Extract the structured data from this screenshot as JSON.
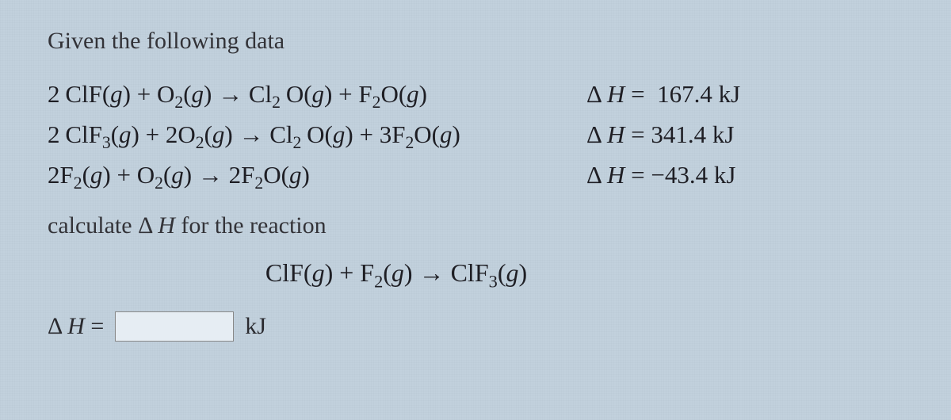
{
  "colors": {
    "background": "#c2d1dd",
    "text_primary": "#2a2a2f",
    "text_equation": "#1e1e24",
    "input_border": "#888888",
    "input_background": "#e6edf3"
  },
  "fonts": {
    "body_size_pt": 22,
    "equation_size_pt": 23,
    "family": "Georgia, Times New Roman, serif"
  },
  "intro_text": "Given the following data",
  "equations": [
    {
      "lhs_html": "2<span class='sp'></span>ClF(<span class='italic'>g</span>) + O<sub>2</sub>(<span class='italic'>g</span>) → Cl<sub>2</sub><span class='sp'></span>O(<span class='italic'>g</span>) + F<sub>2</sub>O(<span class='italic'>g</span>)",
      "dh_label": "Δ <span class='italic'>H</span> =",
      "dh_value": "167.4",
      "dh_unit": "kJ"
    },
    {
      "lhs_html": "2<span class='sp'></span>ClF<sub>3</sub>(<span class='italic'>g</span>) + 2O<sub>2</sub>(<span class='italic'>g</span>) → Cl<sub>2</sub><span class='sp'></span>O(<span class='italic'>g</span>) + 3F<sub>2</sub>O(<span class='italic'>g</span>)",
      "dh_label": "Δ <span class='italic'>H</span> =",
      "dh_value": "341.4",
      "dh_unit": "kJ"
    },
    {
      "lhs_html": "2F<sub>2</sub>(<span class='italic'>g</span>) + O<sub>2</sub>(<span class='italic'>g</span>) → 2F<sub>2</sub>O(<span class='italic'>g</span>)",
      "dh_label": "Δ <span class='italic'>H</span> =",
      "dh_value": "−43.4",
      "dh_unit": "kJ"
    }
  ],
  "prompt_text_html": "calculate Δ <span class='italic'>H</span> for the reaction",
  "target_equation_html": "ClF(<span class='italic'>g</span>) + F<sub>2</sub>(<span class='italic'>g</span>) → ClF<sub>3</sub>(<span class='italic'>g</span>)",
  "answer": {
    "label_html": "Δ <span class='italic'>H</span> =",
    "value": "",
    "unit": "kJ"
  }
}
